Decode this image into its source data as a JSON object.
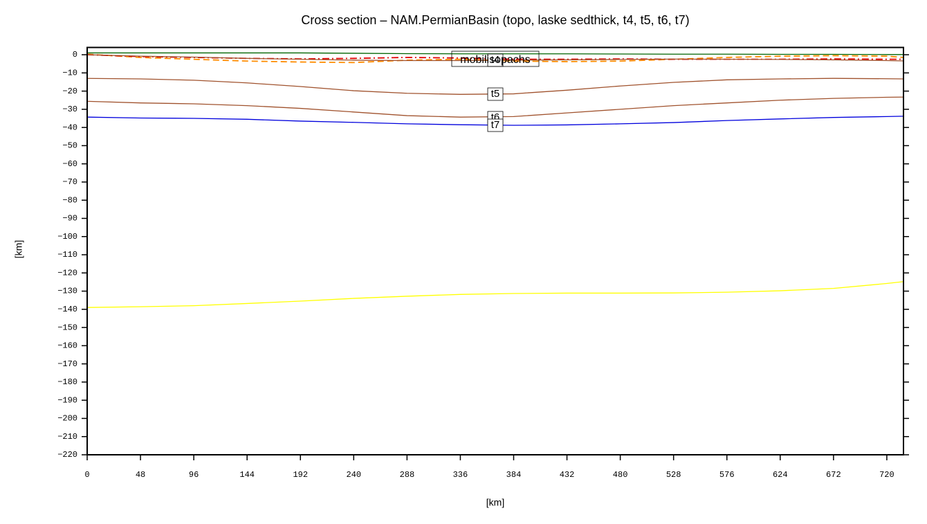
{
  "chart_data": {
    "type": "line",
    "title": "Cross section – NAM.PermianBasin (topo, laske sedthick, t4, t5, t6, t7)",
    "x_label": "[km]",
    "y_label": "[km]",
    "annotations": [
      "mobilisopachs"
    ],
    "x": [
      0,
      48,
      96,
      144,
      192,
      240,
      288,
      336,
      384,
      432,
      480,
      528,
      576,
      624,
      672,
      720,
      735
    ],
    "series": [
      {
        "color": "#006400",
        "style": "solid",
        "values": [
          1,
          1,
          1,
          1,
          1,
          0.8,
          0.6,
          0.5,
          0.5,
          0.5,
          0.4,
          0.3,
          0.3,
          0.2,
          0.2,
          0.1,
          0.1
        ]
      },
      {
        "color": "#ff8c00",
        "style": "dashed",
        "values": [
          0.3,
          -1.5,
          -2.5,
          -3.5,
          -4,
          -4.3,
          -3,
          -2.5,
          -3.5,
          -3.8,
          -3.5,
          -2.5,
          -1.5,
          -0.8,
          -0.5,
          -0.8,
          -1.5
        ]
      },
      {
        "color": "#e00000",
        "style": "dashdot",
        "values": [
          0,
          -1,
          -1.5,
          -2,
          -2.3,
          -2,
          -1.5,
          -1.8,
          -2.5,
          -2.5,
          -2.3,
          -2.5,
          -2.5,
          -2.5,
          -2.3,
          -2.5,
          -2.5
        ]
      },
      {
        "name": "t4",
        "color": "#a0522d",
        "style": "solid",
        "values": [
          0,
          -0.8,
          -1.3,
          -2,
          -2.5,
          -3,
          -3.2,
          -3.2,
          -3,
          -2.8,
          -2.6,
          -2.4,
          -2.5,
          -2.6,
          -2.8,
          -3.2,
          -3.4
        ]
      },
      {
        "name": "t5",
        "color": "#a0522d",
        "style": "solid",
        "values": [
          -13,
          -13.3,
          -14,
          -15.5,
          -17.5,
          -19.8,
          -21.2,
          -21.8,
          -21.5,
          -19.5,
          -17.2,
          -15.2,
          -13.8,
          -13.3,
          -13,
          -13.2,
          -13.3
        ]
      },
      {
        "name": "t6",
        "color": "#a0522d",
        "style": "solid",
        "values": [
          -25.6,
          -26.5,
          -27,
          -28,
          -29.5,
          -31.5,
          -33.5,
          -34.3,
          -34,
          -32,
          -30,
          -28,
          -26.5,
          -25,
          -24,
          -23.4,
          -23.3
        ]
      },
      {
        "name": "t7",
        "color": "#0000dd",
        "style": "solid",
        "values": [
          -34.3,
          -34.8,
          -35,
          -35.5,
          -36.5,
          -37.2,
          -38,
          -38.5,
          -38.8,
          -38.6,
          -38,
          -37.3,
          -36.2,
          -35.3,
          -34.5,
          -34,
          -33.8
        ]
      },
      {
        "color": "#ffff00",
        "style": "solid",
        "values": [
          -139,
          -138.6,
          -138,
          -136.8,
          -135.5,
          -134,
          -132.8,
          -131.8,
          -131.3,
          -131.1,
          -131.1,
          -131,
          -130.6,
          -129.8,
          -128.5,
          -125.8,
          -124.8
        ]
      }
    ],
    "xlim": [
      0,
      735
    ],
    "ylim": [
      -220,
      4
    ],
    "xticks": [
      0,
      48,
      96,
      144,
      192,
      240,
      288,
      336,
      384,
      432,
      480,
      528,
      576,
      624,
      672,
      720
    ],
    "yticks": [
      0,
      {
        "value": -10,
        "label": "−10"
      },
      {
        "value": -20,
        "label": "−20"
      },
      {
        "value": -30,
        "label": "−30"
      },
      {
        "value": -40,
        "label": "−40"
      },
      {
        "value": -50,
        "label": "−50"
      },
      {
        "value": -60,
        "label": "−60"
      },
      {
        "value": -70,
        "label": "−70"
      },
      {
        "value": -80,
        "label": "−80"
      },
      {
        "value": -90,
        "label": "−90"
      },
      {
        "value": -100,
        "label": "−100"
      },
      {
        "value": -110,
        "label": "−110"
      },
      {
        "value": -120,
        "label": "−120"
      },
      {
        "value": -130,
        "label": "−130"
      },
      {
        "value": -140,
        "label": "−140"
      },
      {
        "value": -150,
        "label": "−150"
      },
      {
        "value": -160,
        "label": "−160"
      },
      {
        "value": -170,
        "label": "−170"
      },
      {
        "value": -180,
        "label": "−180"
      },
      {
        "value": -190,
        "label": "−190"
      },
      {
        "value": -200,
        "label": "−200"
      },
      {
        "value": -210,
        "label": "−210"
      },
      {
        "value": -220,
        "label": "−220"
      }
    ]
  }
}
